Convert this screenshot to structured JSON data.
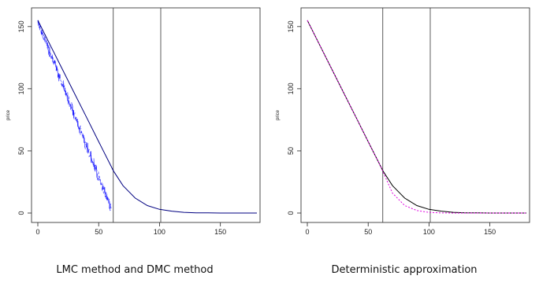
{
  "chart_data": [
    {
      "type": "line",
      "title": "LMC method and DMC method",
      "xlabel": "",
      "ylabel": "price",
      "xlim": [
        0,
        180
      ],
      "ylim": [
        0,
        160
      ],
      "xticks": [
        0,
        50,
        100,
        150
      ],
      "yticks": [
        0,
        50,
        100,
        150
      ],
      "vlines": [
        62,
        101
      ],
      "grid": false,
      "legend": "none",
      "series": [
        {
          "style": "noisy-points",
          "color": "#1a1aff",
          "x": [
            0,
            5,
            10,
            15,
            20,
            25,
            30,
            35,
            40,
            45,
            50,
            55,
            60
          ],
          "y": [
            154,
            141.5,
            129,
            116.5,
            104,
            91.5,
            79,
            66.5,
            54,
            41.5,
            29,
            16.5,
            4
          ]
        },
        {
          "style": "solid",
          "color": "#000080",
          "x": [
            0,
            10,
            20,
            30,
            40,
            50,
            60,
            62,
            70,
            80,
            90,
            100,
            110,
            120,
            130,
            140,
            150,
            160,
            170,
            180
          ],
          "y": [
            155,
            135.5,
            116,
            96.5,
            77,
            57.5,
            38,
            34,
            22,
            12,
            6,
            3,
            1.5,
            0.6,
            0.2,
            0.1,
            0,
            0,
            0,
            0
          ]
        }
      ]
    },
    {
      "type": "line",
      "title": "Deterministic approximation",
      "xlabel": "",
      "ylabel": "price",
      "xlim": [
        0,
        180
      ],
      "ylim": [
        0,
        160
      ],
      "xticks": [
        0,
        50,
        100,
        150
      ],
      "yticks": [
        0,
        50,
        100,
        150
      ],
      "vlines": [
        62,
        101
      ],
      "grid": false,
      "legend": "none",
      "series": [
        {
          "style": "solid",
          "color": "#000000",
          "x": [
            0,
            10,
            20,
            30,
            40,
            50,
            60,
            62,
            70,
            80,
            90,
            100,
            110,
            120,
            130,
            140,
            150,
            160,
            170,
            180
          ],
          "y": [
            155,
            135.5,
            116,
            96.5,
            77,
            57.5,
            38,
            34,
            22,
            12,
            6,
            3,
            1.5,
            0.6,
            0.2,
            0.1,
            0,
            0,
            0,
            0
          ]
        },
        {
          "style": "dashed",
          "color": "#e000e0",
          "x": [
            0,
            10,
            20,
            30,
            40,
            50,
            60,
            62,
            70,
            80,
            90,
            100,
            110,
            120,
            130,
            140,
            150,
            160,
            170,
            180
          ],
          "y": [
            155,
            135.5,
            116,
            96.5,
            77,
            57.5,
            38,
            33.5,
            16,
            6,
            2,
            0.5,
            0.1,
            0,
            0,
            0,
            0,
            0,
            0,
            0
          ]
        }
      ]
    }
  ]
}
